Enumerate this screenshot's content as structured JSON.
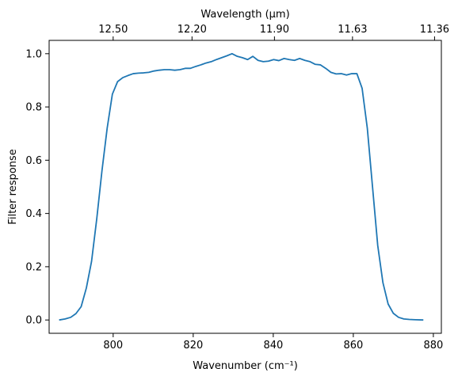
{
  "chart_data": {
    "type": "line",
    "xlabel": "Wavenumber (cm⁻¹)",
    "ylabel": "Filter response",
    "top_xlabel": "Wavelength (μm)",
    "xlim": [
      784,
      882
    ],
    "ylim": [
      -0.05,
      1.05
    ],
    "x_ticks": [
      800,
      820,
      840,
      860,
      880
    ],
    "y_ticks": [
      0.0,
      0.2,
      0.4,
      0.6,
      0.8,
      1.0
    ],
    "top_ticks": [
      {
        "label": "12.50",
        "wavenumber": 800
      },
      {
        "label": "12.20",
        "wavenumber": 819.7
      },
      {
        "label": "11.90",
        "wavenumber": 840.3
      },
      {
        "label": "11.63",
        "wavenumber": 859.8
      },
      {
        "label": "11.36",
        "wavenumber": 880.3
      }
    ],
    "grid": false,
    "series": [
      {
        "color": "#1f77b4",
        "x": [
          786.5,
          788,
          789.4,
          790.7,
          792,
          793.3,
          794.6,
          795.9,
          797.2,
          798.5,
          799.8,
          801.1,
          802.4,
          803.7,
          805,
          806.3,
          807.6,
          808.9,
          810.2,
          811.5,
          812.8,
          814.1,
          815.4,
          816.7,
          818,
          819.3,
          820.6,
          821.9,
          823.2,
          824.5,
          825.8,
          827.1,
          828.4,
          829.7,
          831,
          832.3,
          833.6,
          834.9,
          836.2,
          837.5,
          838.8,
          840.1,
          841.4,
          842.7,
          844,
          845.3,
          846.6,
          847.9,
          849.2,
          850.5,
          851.8,
          853.1,
          854.4,
          855.7,
          857,
          858.3,
          859.6,
          860.9,
          862.2,
          863.5,
          864.8,
          866.1,
          867.4,
          868.7,
          870,
          871.3,
          872.6,
          874,
          875.5,
          877.5
        ],
        "y": [
          0.0,
          0.004,
          0.01,
          0.024,
          0.05,
          0.12,
          0.22,
          0.38,
          0.56,
          0.72,
          0.848,
          0.895,
          0.91,
          0.918,
          0.925,
          0.927,
          0.928,
          0.93,
          0.935,
          0.938,
          0.94,
          0.94,
          0.938,
          0.94,
          0.945,
          0.945,
          0.952,
          0.958,
          0.965,
          0.97,
          0.978,
          0.985,
          0.992,
          1.0,
          0.99,
          0.985,
          0.978,
          0.99,
          0.975,
          0.97,
          0.972,
          0.978,
          0.974,
          0.982,
          0.978,
          0.975,
          0.982,
          0.975,
          0.97,
          0.96,
          0.958,
          0.945,
          0.93,
          0.924,
          0.925,
          0.92,
          0.925,
          0.925,
          0.87,
          0.72,
          0.5,
          0.28,
          0.14,
          0.06,
          0.025,
          0.01,
          0.004,
          0.002,
          0.001,
          0.0
        ]
      }
    ]
  }
}
